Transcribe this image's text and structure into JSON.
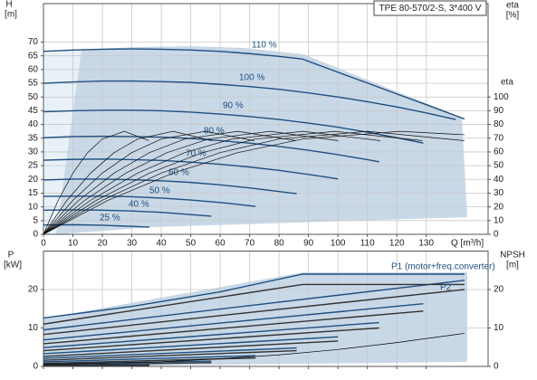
{
  "chart_data": [
    {
      "type": "line",
      "title": "TPE 80-570/2-S, 3*400 V",
      "xlabel": "Q [m³/h]",
      "ylabel": "H",
      "ylabel_unit": "[m]",
      "y2label": "eta",
      "y2label_unit": "[%]",
      "xlim": [
        0,
        151
      ],
      "xticks": [
        0,
        10,
        20,
        30,
        40,
        50,
        60,
        70,
        80,
        90,
        100,
        110,
        120,
        130
      ],
      "xtick_labels": true,
      "ylim": [
        0,
        84
      ],
      "yticks": [
        0,
        5,
        10,
        15,
        20,
        25,
        30,
        35,
        40,
        45,
        50,
        55,
        60,
        65,
        70
      ],
      "y2lim": [
        0,
        168
      ],
      "y2ticks": [
        0,
        10,
        20,
        30,
        40,
        50,
        60,
        70,
        80,
        90,
        100
      ],
      "grid": true,
      "series": [
        {
          "name": "25 %",
          "color": "#1f4f80",
          "x": [
            0,
            10,
            20,
            30,
            36
          ],
          "values": [
            3.4,
            3.5,
            3.3,
            2.9,
            2.6
          ]
        },
        {
          "name": "40 %",
          "color": "#1f4f80",
          "x": [
            0,
            10,
            20,
            30,
            40,
            50,
            57
          ],
          "values": [
            8.8,
            8.9,
            8.8,
            8.5,
            8.0,
            7.2,
            6.6
          ]
        },
        {
          "name": "50 %",
          "color": "#1f4f80",
          "x": [
            0,
            10,
            20,
            30,
            40,
            50,
            60,
            72
          ],
          "values": [
            13.8,
            13.9,
            13.9,
            13.7,
            13.2,
            12.5,
            11.6,
            10.2
          ]
        },
        {
          "name": "60 %",
          "color": "#1f4f80",
          "x": [
            0,
            10,
            20,
            30,
            40,
            50,
            60,
            70,
            80,
            86
          ],
          "values": [
            19.8,
            20.1,
            20.1,
            19.9,
            19.5,
            18.9,
            18.0,
            16.9,
            15.6,
            14.8
          ]
        },
        {
          "name": "70 %",
          "color": "#1f4f80",
          "x": [
            0,
            10,
            20,
            30,
            40,
            50,
            60,
            70,
            80,
            90,
            100
          ],
          "values": [
            27.0,
            27.3,
            27.4,
            27.2,
            26.9,
            26.3,
            25.5,
            24.5,
            23.3,
            21.8,
            20.2
          ]
        },
        {
          "name": "80 %",
          "color": "#1f4f80",
          "x": [
            0,
            10,
            20,
            30,
            40,
            50,
            60,
            70,
            80,
            90,
            100,
            110,
            114
          ],
          "values": [
            35.2,
            35.6,
            35.7,
            35.6,
            35.4,
            34.9,
            34.1,
            33.2,
            32.0,
            30.6,
            29.0,
            27.2,
            26.4
          ]
        },
        {
          "name": "90 %",
          "color": "#1f4f80",
          "x": [
            0,
            10,
            20,
            30,
            40,
            50,
            60,
            70,
            80,
            90,
            100,
            110,
            120,
            129
          ],
          "values": [
            44.6,
            45.0,
            45.2,
            45.2,
            45.0,
            44.5,
            43.8,
            42.9,
            41.8,
            40.5,
            39.0,
            37.2,
            35.2,
            33.2
          ]
        },
        {
          "name": "100 %",
          "color": "#1f4f80",
          "x": [
            0,
            10,
            20,
            30,
            40,
            50,
            60,
            70,
            80,
            90,
            100,
            110,
            120,
            130,
            140
          ],
          "values": [
            55.0,
            55.5,
            55.8,
            55.8,
            55.6,
            55.3,
            54.6,
            53.8,
            52.8,
            51.5,
            50.0,
            48.3,
            46.4,
            44.2,
            41.8
          ]
        },
        {
          "name": "110 %",
          "color": "#1f4f80",
          "x": [
            0,
            10,
            20,
            30,
            40,
            50,
            60,
            70,
            80,
            88,
            100,
            110,
            120,
            130,
            143
          ],
          "values": [
            66.6,
            67.1,
            67.4,
            67.5,
            67.4,
            67.1,
            66.6,
            65.8,
            64.8,
            63.8,
            59.0,
            55.1,
            51.1,
            47.2,
            42.0
          ]
        },
        {
          "axis": "y2",
          "color": "#111111",
          "x": [
            0,
            5,
            10,
            15,
            20,
            27.5,
            35.75
          ],
          "values": [
            0,
            24.8,
            44.6,
            59.5,
            69.4,
            75,
            68.2
          ]
        },
        {
          "axis": "y2",
          "color": "#111111",
          "x": [
            0,
            8,
            16,
            24,
            32,
            44,
            57.2
          ],
          "values": [
            0,
            24.8,
            44.6,
            59.5,
            69.4,
            75,
            68.2
          ]
        },
        {
          "axis": "y2",
          "color": "#111111",
          "x": [
            0,
            10,
            20,
            30,
            40,
            55,
            71.5
          ],
          "values": [
            0,
            24.8,
            44.6,
            59.5,
            69.4,
            75,
            68.2
          ]
        },
        {
          "axis": "y2",
          "color": "#111111",
          "x": [
            0,
            12,
            24,
            36,
            48,
            66,
            85.8
          ],
          "values": [
            0,
            24.8,
            44.6,
            59.5,
            69.4,
            75,
            68.2
          ]
        },
        {
          "axis": "y2",
          "color": "#111111",
          "x": [
            0,
            14,
            28,
            42,
            56,
            77,
            100.1
          ],
          "values": [
            0,
            24.8,
            44.6,
            59.5,
            69.4,
            75,
            68.2
          ]
        },
        {
          "axis": "y2",
          "color": "#111111",
          "x": [
            0,
            16,
            32,
            48,
            64,
            88,
            114.4
          ],
          "values": [
            0,
            24.8,
            44.6,
            59.5,
            69.4,
            75,
            68.2
          ]
        },
        {
          "axis": "y2",
          "color": "#111111",
          "x": [
            0,
            18,
            36,
            54,
            72,
            99,
            128.7
          ],
          "values": [
            0,
            24.8,
            44.6,
            59.5,
            69.4,
            75,
            68.2
          ]
        },
        {
          "axis": "y2",
          "color": "#111111",
          "x": [
            0,
            20,
            40,
            60,
            80,
            110,
            143
          ],
          "values": [
            0,
            24.8,
            44.6,
            59.5,
            69.4,
            75,
            68.2
          ]
        },
        {
          "axis": "y2",
          "color": "#111111",
          "x": [
            0,
            22,
            44,
            66,
            88,
            121,
            143
          ],
          "values": [
            0,
            24.8,
            44.6,
            59.5,
            69.4,
            75,
            72.5
          ]
        }
      ]
    },
    {
      "type": "line",
      "ylabel": "P",
      "ylabel_unit": "[kW]",
      "y2label": "NPSH",
      "y2label_unit": "[m]",
      "annotations": [
        "P1 (motor+freq.converter)",
        "P2"
      ],
      "xlim": [
        0,
        151
      ],
      "xticks": [
        0,
        10,
        20,
        30,
        40,
        50,
        60,
        70,
        80,
        90,
        100,
        110,
        120,
        130
      ],
      "xtick_labels": false,
      "ylim": [
        0,
        30
      ],
      "yticks": [
        0,
        10,
        20
      ],
      "y2lim": [
        0,
        30
      ],
      "y2ticks": [
        0,
        10,
        20
      ],
      "grid": true,
      "series": [
        {
          "color": "#1f4f80",
          "x": [
            0,
            36
          ],
          "values": [
            0.2,
            0.4
          ]
        },
        {
          "color": "#1f4f80",
          "x": [
            0,
            57
          ],
          "values": [
            0.6,
            1.4
          ]
        },
        {
          "color": "#1f4f80",
          "x": [
            0,
            72
          ],
          "values": [
            1.2,
            2.8
          ]
        },
        {
          "color": "#1f4f80",
          "x": [
            0,
            86
          ],
          "values": [
            2.1,
            4.8
          ]
        },
        {
          "color": "#1f4f80",
          "x": [
            0,
            100
          ],
          "values": [
            3.3,
            7.7
          ]
        },
        {
          "color": "#1f4f80",
          "x": [
            0,
            114
          ],
          "values": [
            4.9,
            11.4
          ]
        },
        {
          "color": "#1f4f80",
          "x": [
            0,
            129
          ],
          "values": [
            6.9,
            16.3
          ]
        },
        {
          "color": "#1f4f80",
          "x": [
            0,
            143
          ],
          "values": [
            9.5,
            22.4
          ]
        },
        {
          "color": "#1f4f80",
          "x": [
            0,
            30,
            60,
            88,
            143
          ],
          "values": [
            12.6,
            15.6,
            19.4,
            24.0,
            24.0
          ]
        },
        {
          "color": "#333333",
          "x": [
            0,
            36
          ],
          "values": [
            0.0,
            0.2
          ]
        },
        {
          "color": "#333333",
          "x": [
            0,
            57
          ],
          "values": [
            0.3,
            1.0
          ]
        },
        {
          "color": "#333333",
          "x": [
            0,
            72
          ],
          "values": [
            0.8,
            2.2
          ]
        },
        {
          "color": "#333333",
          "x": [
            0,
            86
          ],
          "values": [
            1.6,
            4.1
          ]
        },
        {
          "color": "#333333",
          "x": [
            0,
            100
          ],
          "values": [
            2.6,
            6.6
          ]
        },
        {
          "color": "#333333",
          "x": [
            0,
            114
          ],
          "values": [
            4.1,
            10.0
          ]
        },
        {
          "color": "#333333",
          "x": [
            0,
            129
          ],
          "values": [
            5.9,
            14.4
          ]
        },
        {
          "color": "#333333",
          "x": [
            0,
            143
          ],
          "values": [
            8.3,
            20.0
          ]
        },
        {
          "color": "#333333",
          "x": [
            0,
            88,
            143
          ],
          "values": [
            11.0,
            21.3,
            21.3
          ]
        },
        {
          "axis": "y2",
          "color": "#000000",
          "x": [
            0,
            40,
            60,
            80,
            100,
            120,
            143
          ],
          "values": [
            0.5,
            1.2,
            2.0,
            3.0,
            4.4,
            6.2,
            8.6
          ]
        }
      ]
    }
  ]
}
